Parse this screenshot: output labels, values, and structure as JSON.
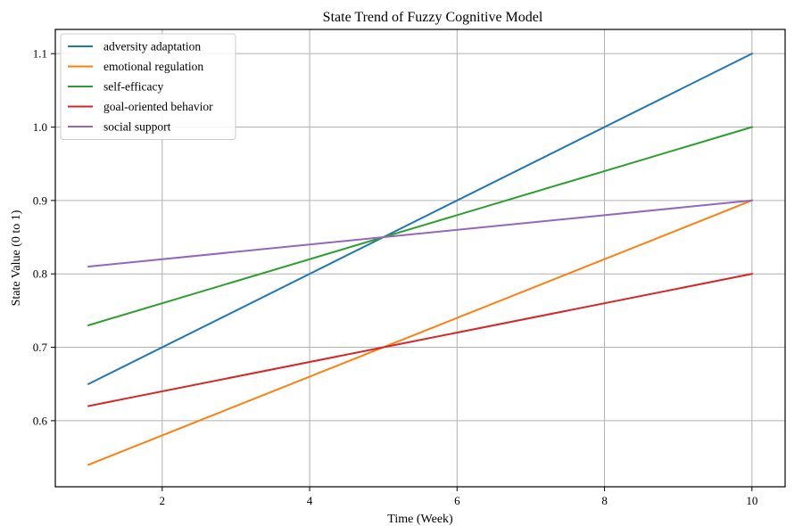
{
  "chart_data": {
    "type": "line",
    "title": "State Trend of Fuzzy Cognitive Model",
    "xlabel": "Time (Week)",
    "ylabel": "State Value (0 to 1)",
    "xlim": [
      0.55,
      10.45
    ],
    "ylim": [
      0.51,
      1.133
    ],
    "xticks": [
      2,
      4,
      6,
      8,
      10
    ],
    "xtick_labels": [
      "2",
      "4",
      "6",
      "8",
      "10"
    ],
    "yticks": [
      0.6,
      0.7,
      0.8,
      0.9,
      1.0,
      1.1
    ],
    "ytick_labels": [
      "0.6",
      "0.7",
      "0.8",
      "0.9",
      "1.0",
      "1.1"
    ],
    "grid": true,
    "legend_position": "top-left",
    "series": [
      {
        "name": "adversity adaptation",
        "color": "#1f77b4",
        "x": [
          1,
          10
        ],
        "y": [
          0.65,
          1.1
        ]
      },
      {
        "name": " emotional regulation",
        "color": "#ff7f0e",
        "x": [
          1,
          10
        ],
        "y": [
          0.54,
          0.9
        ]
      },
      {
        "name": "self-efficacy",
        "color": "#2ca02c",
        "x": [
          1,
          10
        ],
        "y": [
          0.73,
          1.0
        ]
      },
      {
        "name": "goal-oriented behavior",
        "color": "#d62728",
        "x": [
          1,
          10
        ],
        "y": [
          0.62,
          0.8
        ]
      },
      {
        "name": " social support",
        "color": "#9467bd",
        "x": [
          1,
          10
        ],
        "y": [
          0.81,
          0.9
        ]
      }
    ]
  }
}
